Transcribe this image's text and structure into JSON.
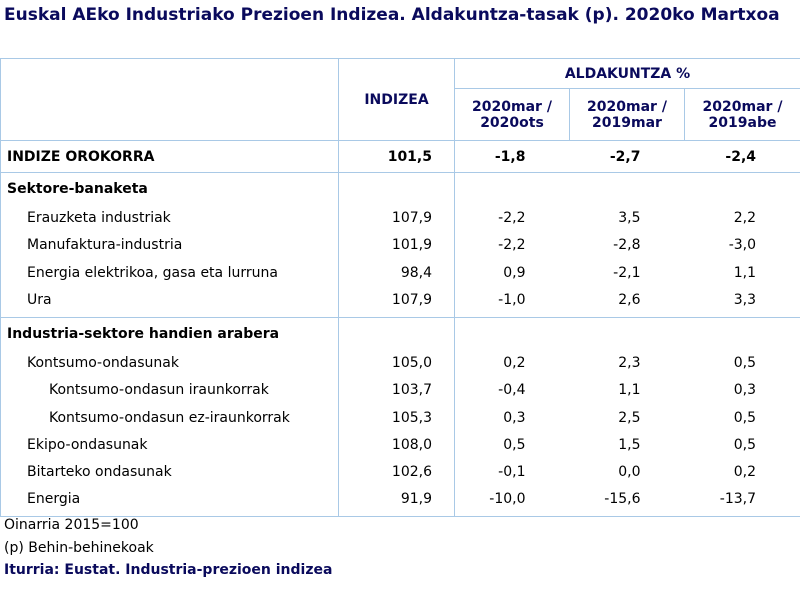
{
  "title": "Euskal AEko Industriako Prezioen Indizea. Aldakuntza-tasak (p). 2020ko Martxoa",
  "table": {
    "header": {
      "index": "INDIZEA",
      "group": "ALDAKUNTZA %",
      "periods": [
        "2020mar / 2020ots",
        "2020mar / 2019mar",
        "2020mar / 2019abe"
      ]
    },
    "overall": {
      "label": "INDIZE OROKORRA",
      "cells": [
        "101,5",
        "-1,8",
        "-2,7",
        "-2,4"
      ]
    },
    "sections": [
      {
        "title": "Sektore-banaketa",
        "rows": [
          {
            "label": "Erauzketa industriak",
            "cells": [
              "107,9",
              "-2,2",
              "3,5",
              "2,2"
            ]
          },
          {
            "label": "Manufaktura-industria",
            "cells": [
              "101,9",
              "-2,2",
              "-2,8",
              "-3,0"
            ]
          },
          {
            "label": "Energia elektrikoa, gasa eta lurruna",
            "cells": [
              "98,4",
              "0,9",
              "-2,1",
              "1,1"
            ]
          },
          {
            "label": "Ura",
            "cells": [
              "107,9",
              "-1,0",
              "2,6",
              "3,3"
            ]
          }
        ]
      },
      {
        "title": "Industria-sektore handien arabera",
        "rows": [
          {
            "label": "Kontsumo-ondasunak",
            "cells": [
              "105,0",
              "0,2",
              "2,3",
              "0,5"
            ],
            "rows": [
              {
                "label": "Kontsumo-ondasun iraunkorrak",
                "cells": [
                  "103,7",
                  "-0,4",
                  "1,1",
                  "0,3"
                ]
              },
              {
                "label": "Kontsumo-ondasun ez-iraunkorrak",
                "cells": [
                  "105,3",
                  "0,3",
                  "2,5",
                  "0,5"
                ]
              }
            ]
          },
          {
            "label": "Ekipo-ondasunak",
            "cells": [
              "108,0",
              "0,5",
              "1,5",
              "0,5"
            ]
          },
          {
            "label": "Bitarteko ondasunak",
            "cells": [
              "102,6",
              "-0,1",
              "0,0",
              "0,2"
            ]
          },
          {
            "label": "Energia",
            "cells": [
              "91,9",
              "-10,0",
              "-15,6",
              "-13,7"
            ]
          }
        ]
      }
    ]
  },
  "notes": [
    "Oinarria 2015=100",
    "(p) Behin-behinekoak",
    "Iturria: Eustat. Industria-prezioen indizea"
  ]
}
